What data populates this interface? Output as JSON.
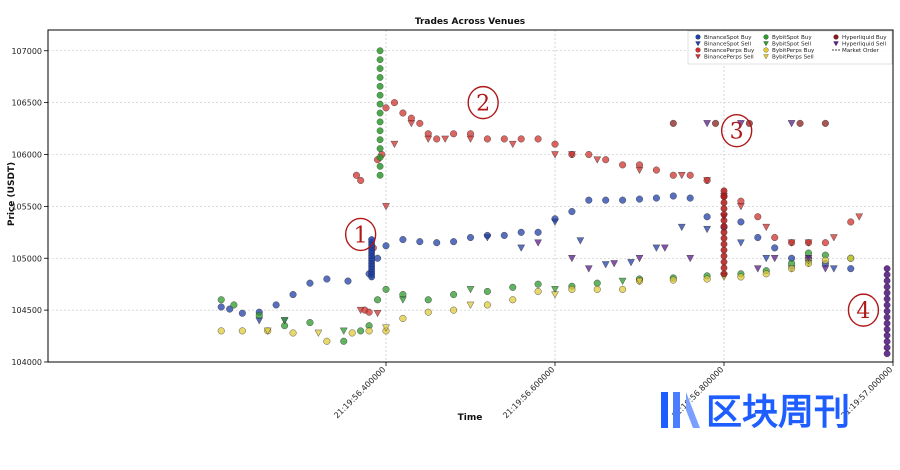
{
  "chart_data": {
    "type": "scatter",
    "title": "Trades Across Venues",
    "xlabel": "Time",
    "ylabel": "Price (USDT)",
    "ylim": [
      104000,
      107200
    ],
    "yticks": [
      104000,
      104500,
      105000,
      105500,
      106000,
      106500,
      107000
    ],
    "xlim": [
      0,
      1.0
    ],
    "xticks": [
      {
        "x": 0.4,
        "label": "21:19:56.400000"
      },
      {
        "x": 0.6,
        "label": "21:19:56.600000"
      },
      {
        "x": 0.8,
        "label": "21:19:56.800000"
      },
      {
        "x": 1.0,
        "label": "21:19:57.000000"
      }
    ],
    "grid": true,
    "legend_position": "top-right",
    "legend": [
      {
        "name": "BinanceSpot Buy",
        "color": "#1f3fa8",
        "marker": "circle"
      },
      {
        "name": "BinanceSpot Sell",
        "color": "#1f3fa8",
        "marker": "triangle-down"
      },
      {
        "name": "BinancePerps Buy",
        "color": "#d0312d",
        "marker": "circle"
      },
      {
        "name": "BinancePerps Sell",
        "color": "#d0312d",
        "marker": "triangle-down"
      },
      {
        "name": "BybitSpot Buy",
        "color": "#2c9a2c",
        "marker": "circle"
      },
      {
        "name": "BybitSpot Sell",
        "color": "#2c9a2c",
        "marker": "triangle-down"
      },
      {
        "name": "BybitPerps Buy",
        "color": "#e0c93a",
        "marker": "circle"
      },
      {
        "name": "BybitPerps Sell",
        "color": "#e0c93a",
        "marker": "triangle-down"
      },
      {
        "name": "Hyperliquid Buy",
        "color": "#8b1c1c",
        "marker": "circle"
      },
      {
        "name": "Hyperliquid Sell",
        "color": "#5a1a8a",
        "marker": "triangle-down"
      },
      {
        "name": "Market Order",
        "color": "#444444",
        "marker": "dash"
      }
    ],
    "series": [
      {
        "name": "BinanceSpot Buy",
        "points": [
          [
            0.205,
            104530
          ],
          [
            0.215,
            104510
          ],
          [
            0.23,
            104470
          ],
          [
            0.25,
            104480
          ],
          [
            0.27,
            104550
          ],
          [
            0.29,
            104650
          ],
          [
            0.31,
            104760
          ],
          [
            0.33,
            104800
          ],
          [
            0.355,
            104780
          ],
          [
            0.38,
            104850
          ],
          [
            0.39,
            105000
          ],
          [
            0.4,
            105120
          ],
          [
            0.42,
            105180
          ],
          [
            0.44,
            105160
          ],
          [
            0.46,
            105150
          ],
          [
            0.48,
            105160
          ],
          [
            0.5,
            105200
          ],
          [
            0.52,
            105220
          ],
          [
            0.54,
            105220
          ],
          [
            0.56,
            105250
          ],
          [
            0.58,
            105250
          ],
          [
            0.6,
            105380
          ],
          [
            0.62,
            105450
          ],
          [
            0.64,
            105560
          ],
          [
            0.66,
            105560
          ],
          [
            0.68,
            105560
          ],
          [
            0.7,
            105570
          ],
          [
            0.72,
            105580
          ],
          [
            0.74,
            105600
          ],
          [
            0.76,
            105580
          ],
          [
            0.78,
            105400
          ],
          [
            0.8,
            105300
          ],
          [
            0.82,
            105350
          ],
          [
            0.84,
            105200
          ],
          [
            0.86,
            105100
          ],
          [
            0.88,
            105000
          ],
          [
            0.9,
            105000
          ],
          [
            0.92,
            104950
          ],
          [
            0.95,
            104900
          ]
        ]
      },
      {
        "name": "BinanceSpot Sell",
        "points": [
          [
            0.25,
            104400
          ],
          [
            0.28,
            104400
          ],
          [
            0.52,
            105200
          ],
          [
            0.56,
            105100
          ],
          [
            0.6,
            105350
          ],
          [
            0.63,
            105170
          ],
          [
            0.66,
            104940
          ],
          [
            0.69,
            104960
          ],
          [
            0.72,
            105100
          ],
          [
            0.75,
            105300
          ],
          [
            0.78,
            105280
          ],
          [
            0.82,
            105150
          ],
          [
            0.85,
            105000
          ],
          [
            0.88,
            104900
          ],
          [
            0.93,
            104900
          ]
        ]
      },
      {
        "name": "BinancePerps Buy",
        "points": [
          [
            0.365,
            105800
          ],
          [
            0.37,
            105750
          ],
          [
            0.375,
            104500
          ],
          [
            0.38,
            104480
          ],
          [
            0.385,
            105100
          ],
          [
            0.39,
            105950
          ],
          [
            0.395,
            106000
          ],
          [
            0.4,
            106450
          ],
          [
            0.41,
            106500
          ],
          [
            0.42,
            106400
          ],
          [
            0.43,
            106350
          ],
          [
            0.44,
            106300
          ],
          [
            0.45,
            106200
          ],
          [
            0.46,
            106150
          ],
          [
            0.48,
            106200
          ],
          [
            0.5,
            106200
          ],
          [
            0.52,
            106150
          ],
          [
            0.54,
            106150
          ],
          [
            0.56,
            106150
          ],
          [
            0.58,
            106150
          ],
          [
            0.6,
            106100
          ],
          [
            0.62,
            106000
          ],
          [
            0.64,
            106000
          ],
          [
            0.66,
            105950
          ],
          [
            0.68,
            105900
          ],
          [
            0.7,
            105900
          ],
          [
            0.72,
            105850
          ],
          [
            0.74,
            105800
          ],
          [
            0.76,
            105800
          ],
          [
            0.78,
            105750
          ],
          [
            0.8,
            105600
          ],
          [
            0.82,
            105550
          ],
          [
            0.84,
            105400
          ],
          [
            0.86,
            105200
          ],
          [
            0.88,
            105150
          ],
          [
            0.9,
            105150
          ],
          [
            0.92,
            105150
          ],
          [
            0.95,
            105350
          ]
        ]
      },
      {
        "name": "BinancePerps Sell",
        "points": [
          [
            0.37,
            104500
          ],
          [
            0.39,
            104470
          ],
          [
            0.4,
            105500
          ],
          [
            0.41,
            106100
          ],
          [
            0.43,
            106300
          ],
          [
            0.45,
            106150
          ],
          [
            0.47,
            106150
          ],
          [
            0.5,
            106150
          ],
          [
            0.55,
            106100
          ],
          [
            0.6,
            106000
          ],
          [
            0.62,
            106000
          ],
          [
            0.65,
            105950
          ],
          [
            0.7,
            105850
          ],
          [
            0.75,
            105800
          ],
          [
            0.78,
            105750
          ],
          [
            0.8,
            105600
          ],
          [
            0.82,
            105500
          ],
          [
            0.85,
            105300
          ],
          [
            0.88,
            105150
          ],
          [
            0.9,
            105150
          ],
          [
            0.93,
            105200
          ],
          [
            0.96,
            105400
          ]
        ]
      },
      {
        "name": "BybitSpot Buy",
        "points": [
          [
            0.205,
            104600
          ],
          [
            0.22,
            104550
          ],
          [
            0.25,
            104450
          ],
          [
            0.28,
            104350
          ],
          [
            0.31,
            104380
          ],
          [
            0.35,
            104200
          ],
          [
            0.37,
            104300
          ],
          [
            0.38,
            104350
          ],
          [
            0.39,
            104600
          ],
          [
            0.4,
            104700
          ],
          [
            0.42,
            104650
          ],
          [
            0.45,
            104600
          ],
          [
            0.48,
            104650
          ],
          [
            0.52,
            104680
          ],
          [
            0.55,
            104720
          ],
          [
            0.58,
            104750
          ],
          [
            0.62,
            104730
          ],
          [
            0.65,
            104760
          ],
          [
            0.7,
            104800
          ],
          [
            0.74,
            104810
          ],
          [
            0.78,
            104830
          ],
          [
            0.82,
            104850
          ],
          [
            0.85,
            104880
          ],
          [
            0.88,
            104950
          ],
          [
            0.9,
            105050
          ],
          [
            0.92,
            105030
          ],
          [
            0.95,
            105000
          ]
        ]
      },
      {
        "name": "BybitSpot Sell",
        "points": [
          [
            0.28,
            104400
          ],
          [
            0.35,
            104300
          ],
          [
            0.42,
            104600
          ],
          [
            0.5,
            104700
          ],
          [
            0.6,
            104700
          ],
          [
            0.68,
            104780
          ],
          [
            0.8,
            104830
          ],
          [
            0.9,
            104950
          ]
        ]
      },
      {
        "name": "BybitPerps Buy",
        "points": [
          [
            0.205,
            104300
          ],
          [
            0.23,
            104300
          ],
          [
            0.26,
            104300
          ],
          [
            0.29,
            104280
          ],
          [
            0.33,
            104200
          ],
          [
            0.36,
            104280
          ],
          [
            0.38,
            104300
          ],
          [
            0.4,
            104300
          ],
          [
            0.42,
            104420
          ],
          [
            0.45,
            104480
          ],
          [
            0.48,
            104500
          ],
          [
            0.52,
            104550
          ],
          [
            0.55,
            104600
          ],
          [
            0.58,
            104680
          ],
          [
            0.62,
            104700
          ],
          [
            0.65,
            104700
          ],
          [
            0.68,
            104700
          ],
          [
            0.7,
            104780
          ],
          [
            0.74,
            104790
          ],
          [
            0.78,
            104800
          ],
          [
            0.82,
            104820
          ],
          [
            0.85,
            104850
          ],
          [
            0.88,
            104900
          ],
          [
            0.9,
            104950
          ],
          [
            0.92,
            104980
          ],
          [
            0.95,
            105000
          ]
        ]
      },
      {
        "name": "BybitPerps Sell",
        "points": [
          [
            0.26,
            104300
          ],
          [
            0.32,
            104280
          ],
          [
            0.4,
            104330
          ],
          [
            0.5,
            104550
          ],
          [
            0.6,
            104650
          ],
          [
            0.7,
            104780
          ],
          [
            0.8,
            104820
          ],
          [
            0.9,
            104980
          ]
        ]
      },
      {
        "name": "Hyperliquid Buy",
        "points": [
          [
            0.74,
            106300
          ],
          [
            0.79,
            106300
          ],
          [
            0.83,
            106300
          ],
          [
            0.89,
            106300
          ],
          [
            0.92,
            106300
          ]
        ]
      },
      {
        "name": "Hyperliquid Sell",
        "points": [
          [
            0.58,
            105150
          ],
          [
            0.62,
            105000
          ],
          [
            0.64,
            104900
          ],
          [
            0.67,
            104950
          ],
          [
            0.7,
            105000
          ],
          [
            0.73,
            105100
          ],
          [
            0.76,
            105000
          ],
          [
            0.78,
            106300
          ],
          [
            0.8,
            105400
          ],
          [
            0.82,
            106300
          ],
          [
            0.84,
            104900
          ],
          [
            0.86,
            105000
          ],
          [
            0.88,
            106300
          ],
          [
            0.9,
            105000
          ],
          [
            0.92,
            104900
          ]
        ]
      }
    ],
    "market_orders": [
      {
        "name": "BinanceSpot sweep",
        "x": 0.383,
        "y_from": 104820,
        "y_to": 105180,
        "color": "#1f3fa8"
      },
      {
        "name": "BybitSpot sweep",
        "x": 0.393,
        "y_from": 105800,
        "y_to": 107000,
        "color": "#2c9a2c"
      },
      {
        "name": "BinancePerps sweep",
        "x": 0.8,
        "y_from": 104850,
        "y_to": 105650,
        "color": "#b01818"
      },
      {
        "name": "Hyperliquid sweep",
        "x": 0.993,
        "y_from": 104080,
        "y_to": 104900,
        "color": "#4b0f7a"
      }
    ],
    "annotations": [
      {
        "label": "1",
        "x": 0.37,
        "y": 105230
      },
      {
        "label": "2",
        "x": 0.515,
        "y": 106500
      },
      {
        "label": "3",
        "x": 0.815,
        "y": 106230
      },
      {
        "label": "4",
        "x": 0.965,
        "y": 104500
      }
    ]
  },
  "watermark": {
    "text": "区块周刊"
  }
}
